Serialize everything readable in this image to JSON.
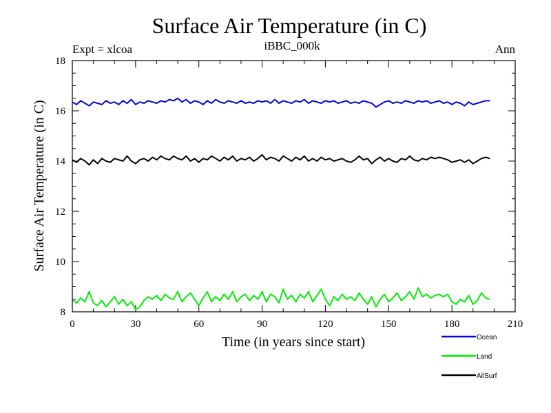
{
  "chart_data": {
    "type": "line",
    "title": "Surface Air Temperature (in C)",
    "subtitle_left": "Expt = xlcoa",
    "subtitle_center": "iBBC_000k",
    "subtitle_right": "Ann",
    "xlabel": "Time (in years since start)",
    "ylabel": "Surface Air Temperature (in C)",
    "xlim": [
      0,
      210
    ],
    "ylim": [
      8,
      18
    ],
    "xticks": [
      0,
      30,
      60,
      90,
      120,
      150,
      180,
      210
    ],
    "yticks": [
      8,
      10,
      12,
      14,
      16,
      18
    ],
    "x_minor_step": 10,
    "y_minor_step": 0.5,
    "x": [
      0,
      2,
      4,
      6,
      8,
      10,
      12,
      14,
      16,
      18,
      20,
      22,
      24,
      26,
      28,
      30,
      32,
      34,
      36,
      38,
      40,
      42,
      44,
      46,
      48,
      50,
      52,
      54,
      56,
      58,
      60,
      62,
      64,
      66,
      68,
      70,
      72,
      74,
      76,
      78,
      80,
      82,
      84,
      86,
      88,
      90,
      92,
      94,
      96,
      98,
      100,
      102,
      104,
      106,
      108,
      110,
      112,
      114,
      116,
      118,
      120,
      122,
      124,
      126,
      128,
      130,
      132,
      134,
      136,
      138,
      140,
      142,
      144,
      146,
      148,
      150,
      152,
      154,
      156,
      158,
      160,
      162,
      164,
      166,
      168,
      170,
      172,
      174,
      176,
      178,
      180,
      182,
      184,
      186,
      188,
      190,
      192,
      194,
      196,
      198
    ],
    "series": [
      {
        "name": "Ocean",
        "color": "#0000dd",
        "values": [
          16.35,
          16.25,
          16.4,
          16.3,
          16.2,
          16.35,
          16.3,
          16.25,
          16.4,
          16.3,
          16.35,
          16.25,
          16.4,
          16.3,
          16.45,
          16.25,
          16.35,
          16.3,
          16.4,
          16.35,
          16.3,
          16.4,
          16.35,
          16.45,
          16.4,
          16.5,
          16.35,
          16.45,
          16.3,
          16.4,
          16.35,
          16.25,
          16.4,
          16.3,
          16.45,
          16.35,
          16.3,
          16.4,
          16.35,
          16.3,
          16.4,
          16.3,
          16.35,
          16.3,
          16.4,
          16.35,
          16.4,
          16.3,
          16.45,
          16.3,
          16.4,
          16.35,
          16.3,
          16.4,
          16.35,
          16.45,
          16.3,
          16.4,
          16.35,
          16.3,
          16.4,
          16.35,
          16.4,
          16.3,
          16.35,
          16.4,
          16.3,
          16.35,
          16.3,
          16.4,
          16.35,
          16.3,
          16.15,
          16.25,
          16.35,
          16.4,
          16.3,
          16.35,
          16.3,
          16.4,
          16.35,
          16.3,
          16.4,
          16.35,
          16.4,
          16.3,
          16.35,
          16.4,
          16.3,
          16.35,
          16.25,
          16.35,
          16.3,
          16.2,
          16.35,
          16.25,
          16.3,
          16.35,
          16.4,
          16.4
        ]
      },
      {
        "name": "Land",
        "color": "#00ee00",
        "values": [
          8.5,
          8.35,
          8.55,
          8.4,
          8.8,
          8.35,
          8.25,
          8.45,
          8.2,
          8.4,
          8.6,
          8.3,
          8.5,
          8.25,
          8.4,
          8.1,
          8.2,
          8.45,
          8.6,
          8.5,
          8.65,
          8.45,
          8.7,
          8.55,
          8.5,
          8.8,
          8.4,
          8.6,
          8.75,
          8.5,
          8.25,
          8.55,
          8.8,
          8.4,
          8.6,
          8.45,
          8.7,
          8.5,
          8.8,
          8.4,
          8.6,
          8.7,
          8.45,
          8.65,
          8.5,
          8.8,
          8.4,
          8.7,
          8.6,
          8.35,
          8.9,
          8.5,
          8.65,
          8.4,
          8.7,
          8.55,
          8.8,
          8.4,
          8.65,
          8.9,
          8.5,
          8.25,
          8.6,
          8.45,
          8.7,
          8.5,
          8.6,
          8.45,
          8.75,
          8.5,
          8.3,
          8.6,
          8.2,
          8.5,
          8.7,
          8.4,
          8.55,
          8.75,
          8.45,
          8.6,
          8.8,
          8.5,
          8.95,
          8.6,
          8.7,
          8.55,
          8.65,
          8.7,
          8.6,
          8.7,
          8.4,
          8.3,
          8.5,
          8.4,
          8.65,
          8.3,
          8.45,
          8.75,
          8.55,
          8.5
        ]
      },
      {
        "name": "AllSurf",
        "color": "#000000",
        "values": [
          14.05,
          13.95,
          14.1,
          14.0,
          13.85,
          14.05,
          13.9,
          14.1,
          14.0,
          13.95,
          14.1,
          14.05,
          14.0,
          14.2,
          14.0,
          13.9,
          14.05,
          14.1,
          14.0,
          14.15,
          14.05,
          14.2,
          14.1,
          14.05,
          14.2,
          14.1,
          14.05,
          14.2,
          14.0,
          14.1,
          13.95,
          14.1,
          14.05,
          14.2,
          14.1,
          14.0,
          14.15,
          14.05,
          14.2,
          14.0,
          14.1,
          14.05,
          14.15,
          14.0,
          14.1,
          14.25,
          14.05,
          14.15,
          14.1,
          14.0,
          14.2,
          14.1,
          14.0,
          14.15,
          14.05,
          14.2,
          14.0,
          14.1,
          14.0,
          14.15,
          14.05,
          14.1,
          14.0,
          14.05,
          14.1,
          14.0,
          13.95,
          14.05,
          14.2,
          14.05,
          14.1,
          13.9,
          14.05,
          14.15,
          14.0,
          14.1,
          14.0,
          13.95,
          14.1,
          14.05,
          14.2,
          14.05,
          14.0,
          14.1,
          14.05,
          14.15,
          14.1,
          14.15,
          14.1,
          14.05,
          13.95,
          14.0,
          14.05,
          13.95,
          14.05,
          13.9,
          14.0,
          14.1,
          14.15,
          14.1
        ]
      }
    ]
  }
}
